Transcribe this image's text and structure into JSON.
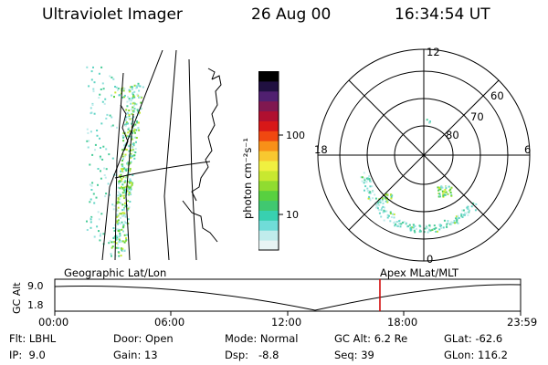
{
  "header": {
    "title": "Ultraviolet Imager",
    "date": "26 Aug 00",
    "time": "16:34:54 UT"
  },
  "colorbar": {
    "label": "photon cm⁻²s⁻¹",
    "ticks": [
      "100",
      "10"
    ],
    "scale": "log",
    "range": [
      2,
      300
    ],
    "colors": [
      "#e8f4f4",
      "#c0ecec",
      "#70dcd8",
      "#38d0b0",
      "#40c870",
      "#58d040",
      "#90dc30",
      "#c8e830",
      "#f0f040",
      "#f8c830",
      "#f89018",
      "#f04810",
      "#d81818",
      "#b01030",
      "#801850",
      "#502070",
      "#201040",
      "#000000"
    ]
  },
  "polar": {
    "labels": {
      "top": "12",
      "bottom": "0",
      "left": "18",
      "right": "6"
    },
    "lat_labels": [
      "60",
      "70",
      "80"
    ]
  },
  "timeline": {
    "left_label": "Geographic Lat/Lon",
    "right_label": "Apex MLat/MLT",
    "axis_label": "GC Alt",
    "y_ticks": [
      "9.0",
      "1.8"
    ],
    "x_ticks": [
      "00:00",
      "06:00",
      "12:00",
      "18:00",
      "23:59"
    ],
    "current_time_fraction": 0.698,
    "marker_color": "#d00000"
  },
  "info": {
    "filter": {
      "label": "Flt:",
      "value": "LBHL"
    },
    "ip": {
      "label": "IP:",
      "value": "9.0"
    },
    "door": {
      "label": "Door:",
      "value": "Open"
    },
    "gain": {
      "label": "Gain:",
      "value": "13"
    },
    "mode": {
      "label": "Mode:",
      "value": "Normal"
    },
    "dsp": {
      "label": "Dsp:",
      "value": "-8.8"
    },
    "gc_alt": {
      "label": "GC Alt:",
      "value": "6.2 Re"
    },
    "seq": {
      "label": "Seq:",
      "value": "39"
    },
    "glat": {
      "label": "GLat:",
      "value": "-62.6"
    },
    "glon": {
      "label": "GLon:",
      "value": "116.2"
    }
  }
}
